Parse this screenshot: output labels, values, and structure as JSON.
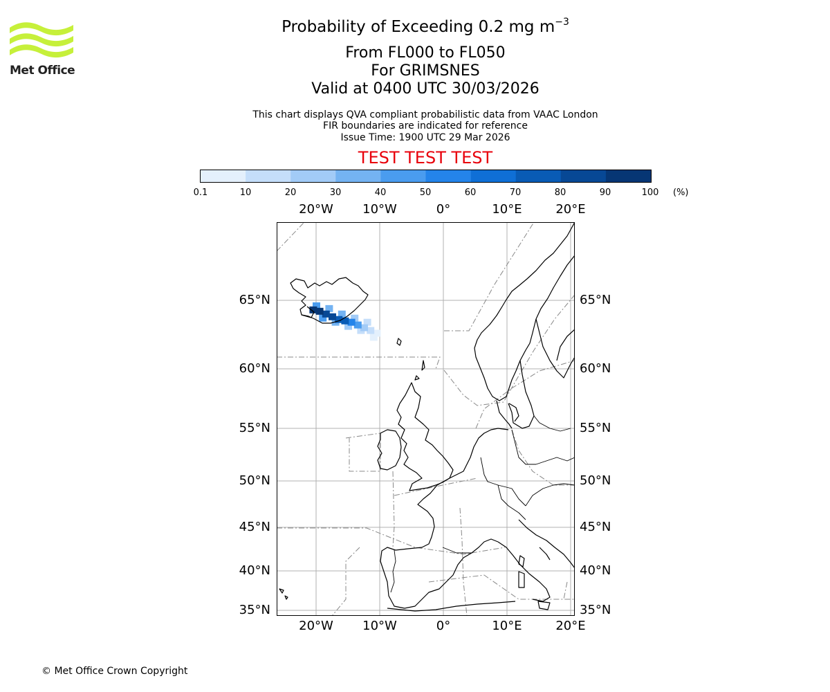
{
  "logo": {
    "text": "Met Office",
    "color": "#c6f03a"
  },
  "title": {
    "line1": "Probability of Exceeding 0.2 mg m",
    "line1_exponent": "−3",
    "line2": "From FL000 to FL050",
    "line3": "For GRIMSNES",
    "line4": "Valid at 0400 UTC 30/03/2026"
  },
  "info": {
    "line1": "This chart displays QVA compliant probabilistic data from VAAC London",
    "line2": "FIR boundaries are indicated for reference",
    "line3": "Issue Time: 1900 UTC 29 Mar 2026"
  },
  "test_banner": {
    "text": "TEST TEST TEST",
    "color": "#e8000b"
  },
  "colorbar": {
    "ticks": [
      "0.1",
      "10",
      "20",
      "30",
      "40",
      "50",
      "60",
      "70",
      "80",
      "90",
      "100"
    ],
    "unit": "(%)",
    "colors": [
      "#e4f0fc",
      "#c5defa",
      "#a2cbf7",
      "#74b3f2",
      "#4a9cef",
      "#2484ea",
      "#0f6fd6",
      "#095bb5",
      "#074895",
      "#063674"
    ]
  },
  "chart_data": {
    "type": "heatmap",
    "title": "Probability of Exceeding 0.2 mg m−3",
    "value_unit": "%",
    "lon_range": [
      -26,
      21
    ],
    "lat_range": [
      35,
      70
    ],
    "lon_ticks": [
      "20°W",
      "10°W",
      "0°",
      "10°E",
      "20°E"
    ],
    "lat_ticks": [
      "65°N",
      "60°N",
      "55°N",
      "50°N",
      "45°N",
      "40°N",
      "35°N"
    ],
    "source_location": "GRIMSNES",
    "plume": [
      {
        "lon": -20.5,
        "lat": 64.3,
        "probability": 95
      },
      {
        "lon": -19.5,
        "lat": 64.2,
        "probability": 90
      },
      {
        "lon": -18.5,
        "lat": 64.0,
        "probability": 85
      },
      {
        "lon": -17.5,
        "lat": 63.8,
        "probability": 80
      },
      {
        "lon": -16.5,
        "lat": 63.6,
        "probability": 75
      },
      {
        "lon": -15.5,
        "lat": 63.5,
        "probability": 70
      },
      {
        "lon": -14.5,
        "lat": 63.4,
        "probability": 55
      },
      {
        "lon": -13.5,
        "lat": 63.2,
        "probability": 40
      },
      {
        "lon": -12.5,
        "lat": 63.0,
        "probability": 25
      },
      {
        "lon": -11.5,
        "lat": 62.8,
        "probability": 15
      },
      {
        "lon": -10.5,
        "lat": 62.6,
        "probability": 8
      },
      {
        "lon": -20.0,
        "lat": 64.6,
        "probability": 45
      },
      {
        "lon": -18.0,
        "lat": 64.4,
        "probability": 35
      },
      {
        "lon": -16.0,
        "lat": 64.0,
        "probability": 30
      },
      {
        "lon": -19.0,
        "lat": 63.7,
        "probability": 40
      },
      {
        "lon": -17.0,
        "lat": 63.4,
        "probability": 30
      },
      {
        "lon": -15.0,
        "lat": 63.1,
        "probability": 22
      },
      {
        "lon": -13.0,
        "lat": 62.8,
        "probability": 12
      },
      {
        "lon": -11.0,
        "lat": 62.3,
        "probability": 5
      },
      {
        "lon": -14.0,
        "lat": 63.7,
        "probability": 20
      },
      {
        "lon": -12.0,
        "lat": 63.4,
        "probability": 12
      }
    ]
  },
  "copyright": "© Met Office Crown Copyright"
}
